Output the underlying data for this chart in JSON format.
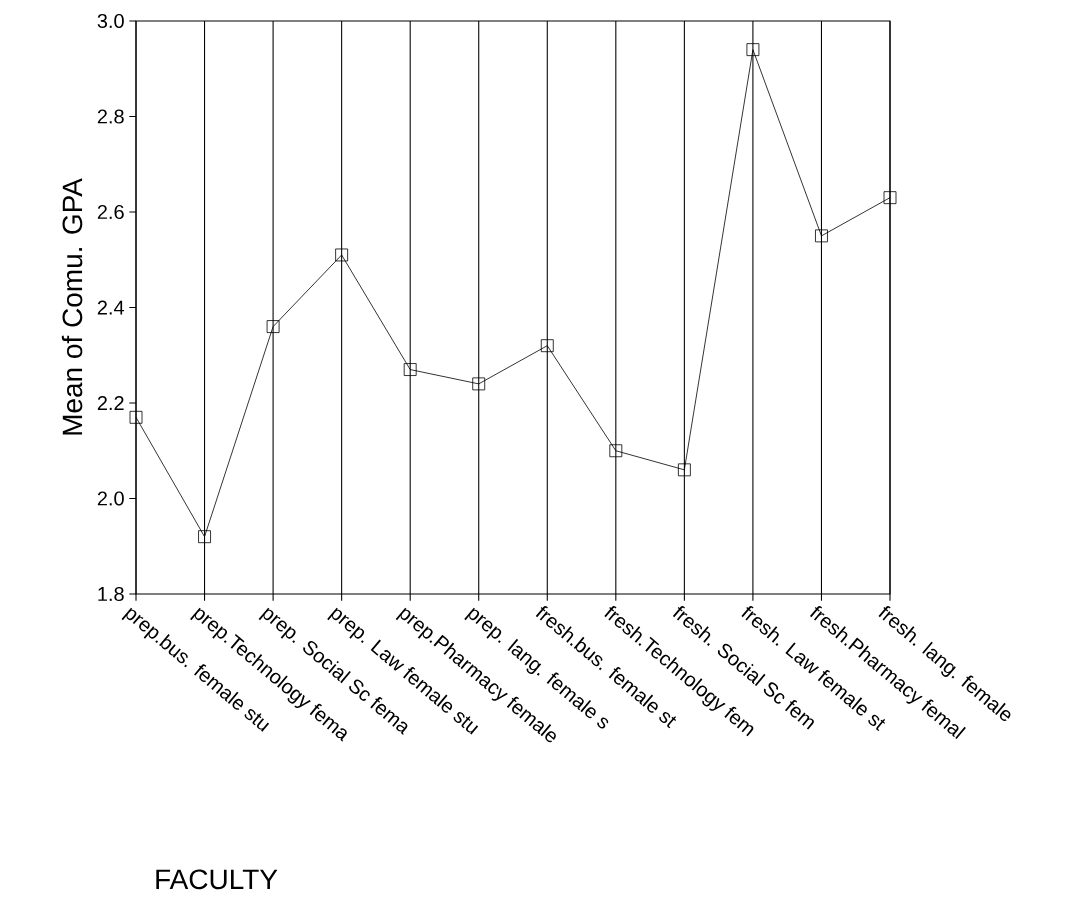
{
  "chart_data": {
    "type": "line",
    "xlabel": "FACULTY",
    "ylabel": "Mean of Comu. GPA",
    "categories": [
      "prep.bus. female stu",
      "prep.Technology fema",
      "prep. Social Sc fema",
      "prep. Law female stu",
      "prep.Pharmacy female",
      "prep. lang. female s",
      "fresh.bus. female st",
      "fresh.Technology fem",
      "fresh. Social Sc fem",
      "fresh. Law female st",
      "fresh.Pharmacy femal",
      "fresh. lang. female"
    ],
    "values": [
      2.17,
      1.92,
      2.36,
      2.51,
      2.27,
      2.24,
      2.32,
      2.1,
      2.06,
      2.94,
      2.55,
      2.63
    ],
    "color": "#000000",
    "marker": "square",
    "line_style": "solid",
    "grid": "x",
    "ylim": [
      1.8,
      3.0
    ],
    "yticks": [
      {
        "value": 1.8,
        "label": "1.8"
      },
      {
        "value": 2.0,
        "label": "2.0"
      },
      {
        "value": 2.2,
        "label": "2.2"
      },
      {
        "value": 2.4,
        "label": "2.4"
      },
      {
        "value": 2.6,
        "label": "2.6"
      },
      {
        "value": 2.8,
        "label": "2.8"
      },
      {
        "value": 3.0,
        "label": "3.0"
      }
    ]
  }
}
